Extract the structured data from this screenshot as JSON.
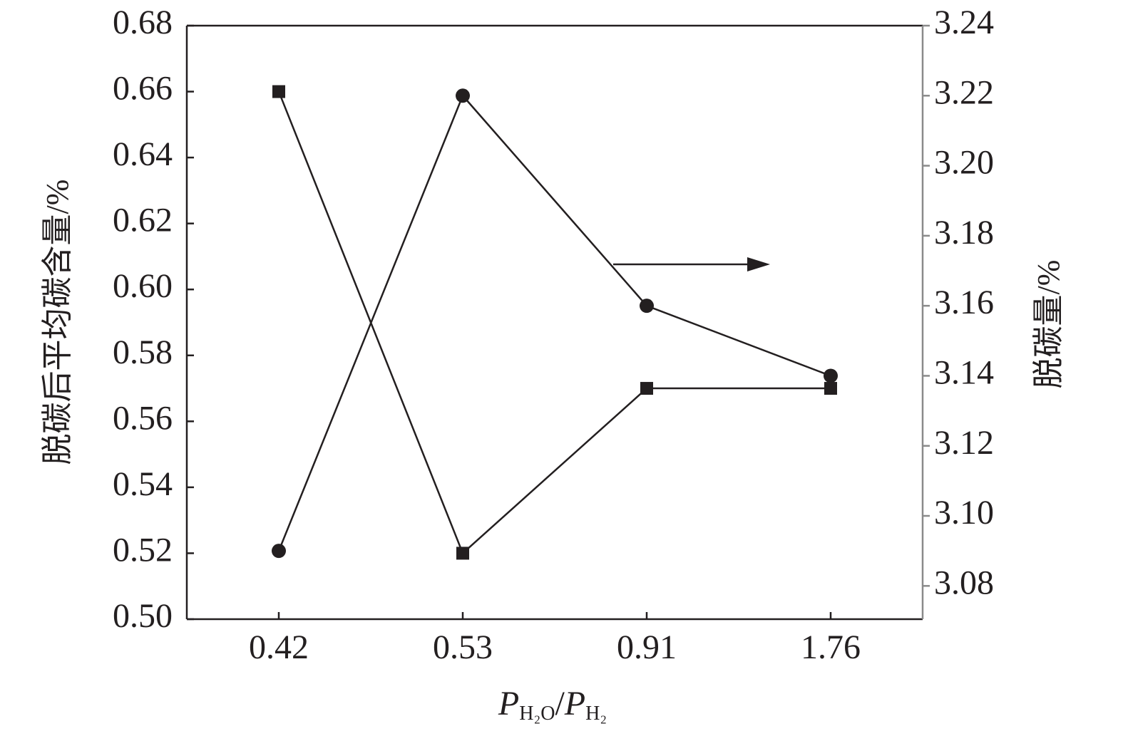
{
  "chart_data": {
    "type": "line",
    "ylabel": "脱碳后平均碳含量/%",
    "y2label": "脱碳量/%",
    "xlabel_parts": [
      "P",
      "H₂O",
      "/",
      "P",
      "H₂"
    ],
    "categories": [
      "0.42",
      "0.53",
      "0.91",
      "1.76"
    ],
    "series": [
      {
        "color": "#231f20",
        "marker": "square",
        "axis": "y",
        "values": [
          0.66,
          0.52,
          0.57,
          0.57
        ]
      },
      {
        "color": "#231f20",
        "marker": "circle",
        "axis": "y2",
        "values": [
          3.09,
          3.22,
          3.16,
          3.14
        ]
      }
    ],
    "ylim": [
      0.5,
      0.68
    ],
    "yticks": [
      {
        "value": 0.5,
        "label": "0.50"
      },
      0.52,
      0.54,
      0.56,
      0.58,
      {
        "value": 0.6,
        "label": "0.60"
      },
      0.62,
      0.64,
      0.66,
      0.68
    ],
    "y2lim": [
      3.0705,
      3.24
    ],
    "y2ticks": [
      3.08,
      {
        "value": 3.1,
        "label": "3.10"
      },
      3.12,
      3.14,
      3.16,
      3.18,
      {
        "value": 3.2,
        "label": "3.20"
      },
      3.22,
      3.24
    ]
  }
}
